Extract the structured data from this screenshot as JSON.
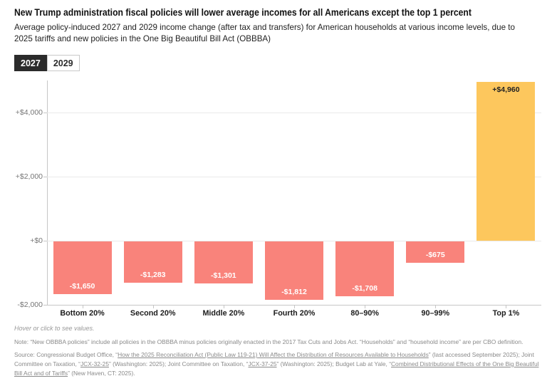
{
  "header": {
    "title": "New Trump administration fiscal policies will lower average incomes for all Americans except the top 1 percent",
    "subtitle": "Average policy-induced 2027 and 2029 income change (after tax and transfers) for American households at various income levels, due to 2025 tariffs and new policies in the One Big Beautiful Bill Act (OBBBA)"
  },
  "tabs": [
    {
      "label": "2027",
      "selected": true
    },
    {
      "label": "2029",
      "selected": false
    }
  ],
  "chart_data": {
    "type": "bar",
    "title": "",
    "xlabel": "",
    "ylabel": "",
    "categories": [
      "Bottom 20%",
      "Second 20%",
      "Middle 20%",
      "Fourth 20%",
      "80–90%",
      "90–99%",
      "Top 1%"
    ],
    "values": [
      -1650,
      -1283,
      -1301,
      -1812,
      -1708,
      -675,
      4960
    ],
    "value_labels": [
      "-$1,650",
      "-$1,283",
      "-$1,301",
      "-$1,812",
      "-$1,708",
      "-$675",
      "+$4,960"
    ],
    "ylim": [
      -2000,
      5000
    ],
    "y_ticks": [
      {
        "label": "+$4,000",
        "value": 4000
      },
      {
        "label": "+$2,000",
        "value": 2000
      },
      {
        "label": "+$0",
        "value": 0
      },
      {
        "label": "-$2,000",
        "value": -2000
      }
    ],
    "grid": true,
    "legend": "none",
    "colors": {
      "negative": "#f9837b",
      "positive": "#fdc75d"
    }
  },
  "footer": {
    "hover_note": "Hover or click to see values.",
    "note": "Note: “New OBBBA policies” include all policies in the OBBBA minus policies originally enacted in the 2017 Tax Cuts and Jobs Act. “Households” and “household income” are per CBO definition.",
    "source_segments": [
      {
        "text": "Source: Congressional Budget Office, “",
        "link": false
      },
      {
        "text": "How the 2025 Reconciliation Act (Public Law 119-21) Will Affect the Distribution of Resources Available to Households",
        "link": true
      },
      {
        "text": "” (last accessed September 2025); Joint Committee on Taxation, “",
        "link": false
      },
      {
        "text": "JCX-32-25",
        "link": true
      },
      {
        "text": "” (Washington: 2025); Joint Committee on Taxation, “",
        "link": false
      },
      {
        "text": "JCX-37-25",
        "link": true
      },
      {
        "text": "” (Washington: 2025); Budget Lab at Yale, “",
        "link": false
      },
      {
        "text": "Combined Distributional Effects of the One Big Beautiful Bill Act and of Tariffs",
        "link": true
      },
      {
        "text": "” (New Haven, CT: 2025).",
        "link": false
      }
    ]
  }
}
